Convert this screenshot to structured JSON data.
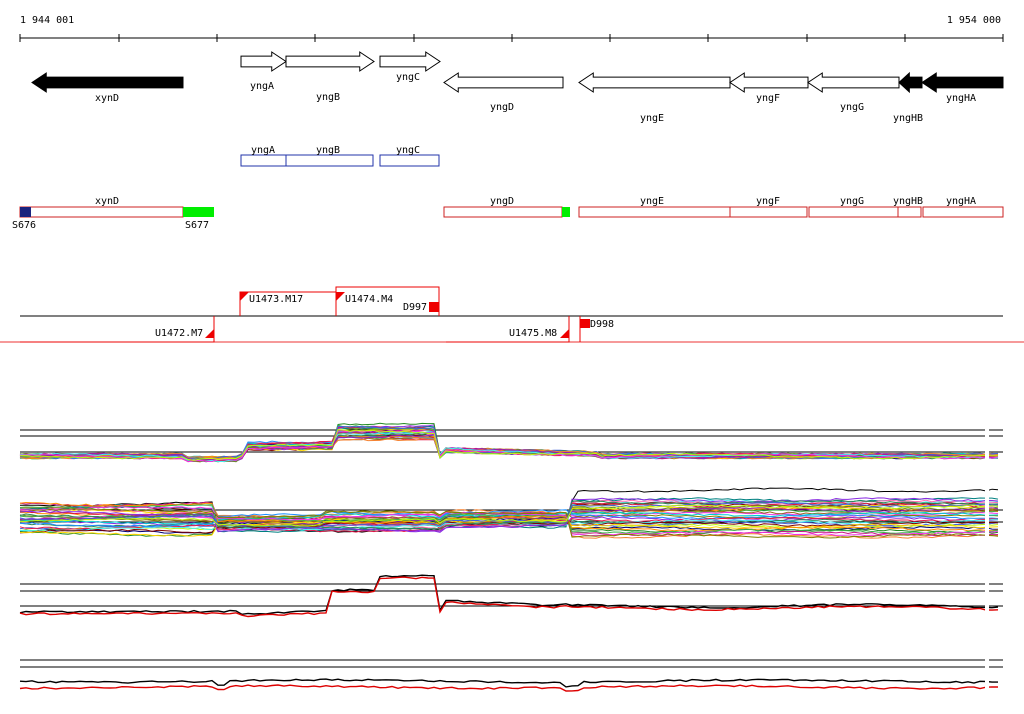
{
  "coords": {
    "start": "1 944 001",
    "end": "1 954 000"
  },
  "colors": {
    "gene_fill_reference": "#000000",
    "gene_outline": "#000000",
    "annotation_box": "#2233aa",
    "transcript_box": "#cc2222",
    "probe_marker": "#ee0000",
    "signal_line": "#000000",
    "signal_red": "#dd0000",
    "left_marker": "#1a237e",
    "green_marker": "#00ee00"
  },
  "genes": [
    {
      "id": "xynD",
      "label": "xynD",
      "strand": "-",
      "filled": true
    },
    {
      "id": "yngA",
      "label": "yngA",
      "strand": "+",
      "filled": false
    },
    {
      "id": "yngB",
      "label": "yngB",
      "strand": "+",
      "filled": false
    },
    {
      "id": "yngC",
      "label": "yngC",
      "strand": "+",
      "filled": false
    },
    {
      "id": "yngD",
      "label": "yngD",
      "strand": "-",
      "filled": false
    },
    {
      "id": "yngE",
      "label": "yngE",
      "strand": "-",
      "filled": false
    },
    {
      "id": "yngF",
      "label": "yngF",
      "strand": "-",
      "filled": false
    },
    {
      "id": "yngG",
      "label": "yngG",
      "strand": "-",
      "filled": false
    },
    {
      "id": "yngHB",
      "label": "yngHB",
      "strand": "-",
      "filled": true
    },
    {
      "id": "yngHA",
      "label": "yngHA",
      "strand": "-",
      "filled": true
    }
  ],
  "annotation_boxes": [
    {
      "label": "yngA"
    },
    {
      "label": "yngB"
    },
    {
      "label": "yngC"
    }
  ],
  "transcripts": [
    {
      "label": "xynD"
    },
    {
      "label": "yngD"
    },
    {
      "label": "yngE"
    },
    {
      "label": "yngF"
    },
    {
      "label": "yngG"
    },
    {
      "label": "yngHB"
    },
    {
      "label": "yngHA"
    }
  ],
  "region_markers": [
    {
      "label": "S676",
      "color": "#1a237e"
    },
    {
      "label": "S677",
      "color": "#00ee00"
    },
    {
      "label": "",
      "color": "#00ee00"
    }
  ],
  "segments": [
    {
      "label": "U1473.M17"
    },
    {
      "label": "U1474.M4"
    },
    {
      "label": "D997"
    },
    {
      "label": "U1472.M7"
    },
    {
      "label": "U1475.M8"
    },
    {
      "label": "D998"
    }
  ]
}
